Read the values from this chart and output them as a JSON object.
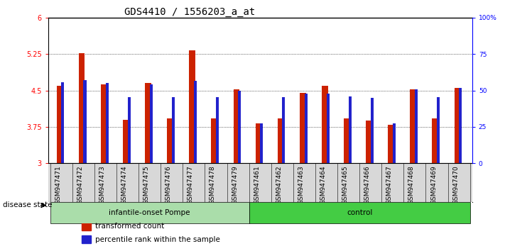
{
  "title": "GDS4410 / 1556203_a_at",
  "categories": [
    "GSM947471",
    "GSM947472",
    "GSM947473",
    "GSM947474",
    "GSM947475",
    "GSM947476",
    "GSM947477",
    "GSM947478",
    "GSM947479",
    "GSM947461",
    "GSM947462",
    "GSM947463",
    "GSM947464",
    "GSM947465",
    "GSM947466",
    "GSM947467",
    "GSM947468",
    "GSM947469",
    "GSM947470"
  ],
  "red_values": [
    4.6,
    5.27,
    4.63,
    3.9,
    4.65,
    3.92,
    5.32,
    3.92,
    4.52,
    3.83,
    3.92,
    4.45,
    4.6,
    3.93,
    3.88,
    3.8,
    4.52,
    3.92,
    4.55
  ],
  "blue_values": [
    4.67,
    4.72,
    4.65,
    4.37,
    4.63,
    4.36,
    4.7,
    4.36,
    4.5,
    3.83,
    4.37,
    4.44,
    4.44,
    4.38,
    4.35,
    3.82,
    4.52,
    4.37,
    4.55
  ],
  "ylim_left": [
    3,
    6
  ],
  "ylim_right": [
    0,
    100
  ],
  "yticks_left": [
    3,
    3.75,
    4.5,
    5.25,
    6
  ],
  "yticks_right": [
    0,
    25,
    50,
    75,
    100
  ],
  "ytick_labels_right": [
    "0",
    "25",
    "50",
    "75",
    "100%"
  ],
  "ytick_labels_left": [
    "3",
    "3.75",
    "4.5",
    "5.25",
    "6"
  ],
  "groups": [
    {
      "label": "infantile-onset Pompe",
      "start": 0,
      "end": 9,
      "color": "#aaddaa"
    },
    {
      "label": "control",
      "start": 9,
      "end": 19,
      "color": "#44cc44"
    }
  ],
  "disease_state_label": "disease state",
  "legend": [
    {
      "label": "transformed count",
      "color": "#cc2200"
    },
    {
      "label": "percentile rank within the sample",
      "color": "#2222cc"
    }
  ],
  "red_bar_width": 0.28,
  "blue_bar_width": 0.13,
  "red_color": "#cc2200",
  "blue_color": "#2222cc",
  "title_fontsize": 10,
  "tick_fontsize": 6.5,
  "base_value": 3,
  "bar_gap": 0.14
}
